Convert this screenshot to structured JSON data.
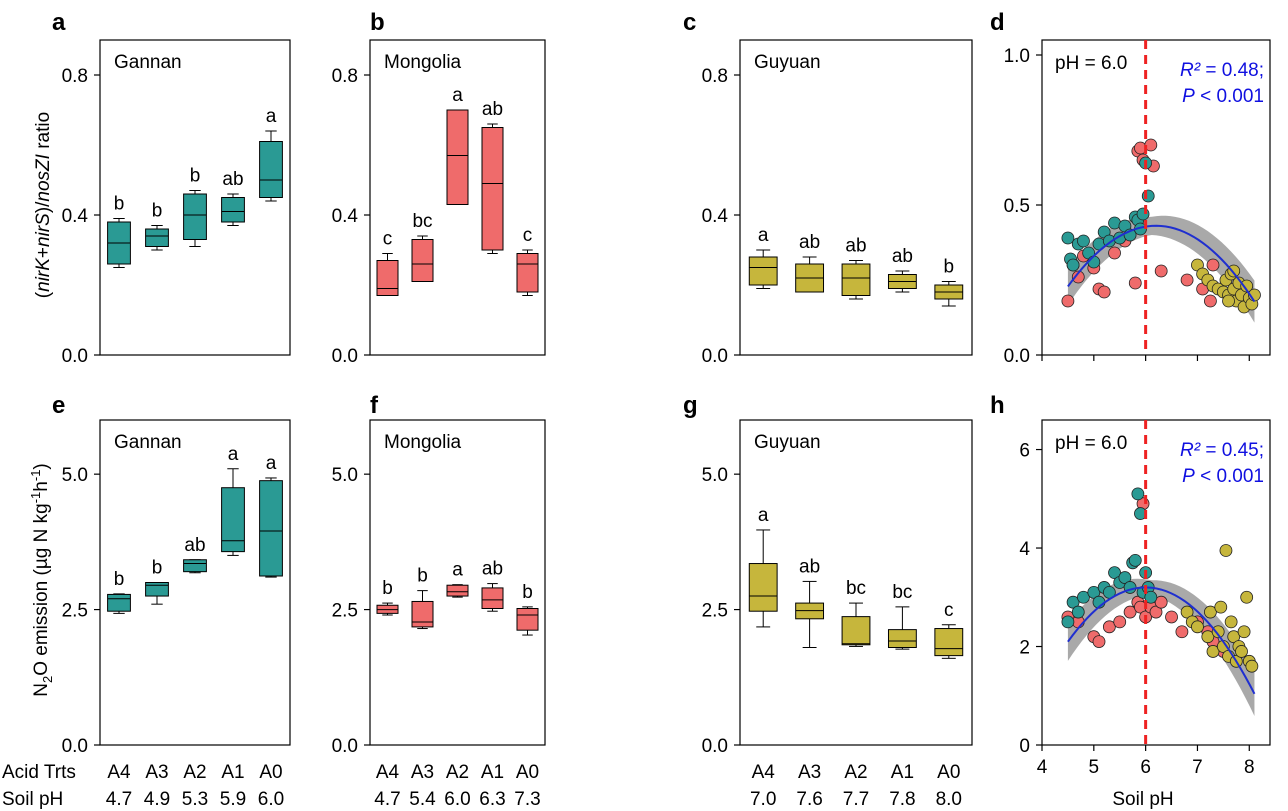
{
  "figure": {
    "ylabel_top": "(nirK+nirS)/nosZI ratio",
    "ylabel_bottom": "N2O emission (µg N kg-1h-1)",
    "row_labels": {
      "trts": "Acid Trts",
      "ph": "Soil pH"
    },
    "xlabel_scatter": "Soil pH",
    "colors": {
      "Gannan": "#2a9a94",
      "Mongolia": "#ef6b6b",
      "Guyuan": "#c6b63c",
      "fit": "#1f2fd0",
      "band": "#8c8c8c",
      "vline": "#ee2222",
      "stat": "#1010e0"
    }
  },
  "chart_data": [
    {
      "panel": "a",
      "type": "box",
      "site": "Gannan",
      "color": "Gannan",
      "ylim": [
        0,
        0.9
      ],
      "yticks": [
        "0.0",
        "0.4",
        "0.8"
      ],
      "categories": [
        "A4",
        "A3",
        "A2",
        "A1",
        "A0"
      ],
      "soil_ph": [
        "4.7",
        "4.9",
        "5.3",
        "5.9",
        "6.0"
      ],
      "boxes": [
        {
          "wmin": 0.25,
          "q1": 0.26,
          "med": 0.32,
          "q3": 0.38,
          "wmax": 0.39,
          "letter": "b"
        },
        {
          "wmin": 0.3,
          "q1": 0.31,
          "med": 0.34,
          "q3": 0.36,
          "wmax": 0.37,
          "letter": "b"
        },
        {
          "wmin": 0.31,
          "q1": 0.33,
          "med": 0.4,
          "q3": 0.46,
          "wmax": 0.47,
          "letter": "b"
        },
        {
          "wmin": 0.37,
          "q1": 0.38,
          "med": 0.41,
          "q3": 0.45,
          "wmax": 0.46,
          "letter": "ab"
        },
        {
          "wmin": 0.44,
          "q1": 0.45,
          "med": 0.5,
          "q3": 0.61,
          "wmax": 0.64,
          "letter": "a"
        }
      ]
    },
    {
      "panel": "b",
      "type": "box",
      "site": "Mongolia",
      "color": "Mongolia",
      "ylim": [
        0,
        0.9
      ],
      "yticks": [
        "0.0",
        "0.4",
        "0.8"
      ],
      "categories": [
        "A4",
        "A3",
        "A2",
        "A1",
        "A0"
      ],
      "soil_ph": [
        "4.7",
        "5.4",
        "6.0",
        "6.3",
        "7.3"
      ],
      "boxes": [
        {
          "wmin": 0.17,
          "q1": 0.17,
          "med": 0.19,
          "q3": 0.27,
          "wmax": 0.29,
          "letter": "c"
        },
        {
          "wmin": 0.21,
          "q1": 0.21,
          "med": 0.26,
          "q3": 0.33,
          "wmax": 0.34,
          "letter": "bc"
        },
        {
          "wmin": 0.43,
          "q1": 0.43,
          "med": 0.57,
          "q3": 0.7,
          "wmax": 0.7,
          "letter": "a"
        },
        {
          "wmin": 0.29,
          "q1": 0.3,
          "med": 0.49,
          "q3": 0.65,
          "wmax": 0.66,
          "letter": "ab"
        },
        {
          "wmin": 0.17,
          "q1": 0.18,
          "med": 0.26,
          "q3": 0.29,
          "wmax": 0.3,
          "letter": "c"
        }
      ]
    },
    {
      "panel": "c",
      "type": "box",
      "site": "Guyuan",
      "color": "Guyuan",
      "ylim": [
        0,
        0.9
      ],
      "yticks": [
        "0.0",
        "0.4",
        "0.8"
      ],
      "categories": [
        "A4",
        "A3",
        "A2",
        "A1",
        "A0"
      ],
      "soil_ph": [
        "7.0",
        "7.6",
        "7.7",
        "7.8",
        "8.0"
      ],
      "boxes": [
        {
          "wmin": 0.19,
          "q1": 0.2,
          "med": 0.25,
          "q3": 0.28,
          "wmax": 0.3,
          "letter": "a"
        },
        {
          "wmin": 0.18,
          "q1": 0.18,
          "med": 0.22,
          "q3": 0.26,
          "wmax": 0.28,
          "letter": "ab"
        },
        {
          "wmin": 0.16,
          "q1": 0.17,
          "med": 0.22,
          "q3": 0.26,
          "wmax": 0.27,
          "letter": "ab"
        },
        {
          "wmin": 0.18,
          "q1": 0.19,
          "med": 0.21,
          "q3": 0.23,
          "wmax": 0.24,
          "letter": "ab"
        },
        {
          "wmin": 0.14,
          "q1": 0.16,
          "med": 0.18,
          "q3": 0.2,
          "wmax": 0.21,
          "letter": "b"
        }
      ]
    },
    {
      "panel": "e",
      "type": "box",
      "site": "Gannan",
      "color": "Gannan",
      "ylim": [
        0,
        6.0
      ],
      "yticks": [
        "0.0",
        "2.5",
        "5.0"
      ],
      "categories": [
        "A4",
        "A3",
        "A2",
        "A1",
        "A0"
      ],
      "soil_ph": [
        "4.7",
        "4.9",
        "5.3",
        "5.9",
        "6.0"
      ],
      "boxes": [
        {
          "wmin": 2.43,
          "q1": 2.47,
          "med": 2.7,
          "q3": 2.78,
          "wmax": 2.79,
          "letter": "b"
        },
        {
          "wmin": 2.6,
          "q1": 2.75,
          "med": 2.95,
          "q3": 3.0,
          "wmax": 3.0,
          "letter": "b"
        },
        {
          "wmin": 3.18,
          "q1": 3.2,
          "med": 3.35,
          "q3": 3.42,
          "wmax": 3.42,
          "letter": "ab"
        },
        {
          "wmin": 3.5,
          "q1": 3.57,
          "med": 3.77,
          "q3": 4.75,
          "wmax": 5.1,
          "letter": "a"
        },
        {
          "wmin": 3.1,
          "q1": 3.12,
          "med": 3.95,
          "q3": 4.88,
          "wmax": 4.93,
          "letter": "a"
        }
      ]
    },
    {
      "panel": "f",
      "type": "box",
      "site": "Mongolia",
      "color": "Mongolia",
      "ylim": [
        0,
        6.0
      ],
      "yticks": [
        "0.0",
        "2.5",
        "5.0"
      ],
      "categories": [
        "A4",
        "A3",
        "A2",
        "A1",
        "A0"
      ],
      "soil_ph": [
        "4.7",
        "5.4",
        "6.0",
        "6.3",
        "7.3"
      ],
      "boxes": [
        {
          "wmin": 2.4,
          "q1": 2.43,
          "med": 2.5,
          "q3": 2.58,
          "wmax": 2.62,
          "letter": "b"
        },
        {
          "wmin": 2.15,
          "q1": 2.18,
          "med": 2.27,
          "q3": 2.65,
          "wmax": 2.85,
          "letter": "b"
        },
        {
          "wmin": 2.73,
          "q1": 2.75,
          "med": 2.83,
          "q3": 2.95,
          "wmax": 2.96,
          "letter": "a"
        },
        {
          "wmin": 2.47,
          "q1": 2.52,
          "med": 2.68,
          "q3": 2.9,
          "wmax": 2.98,
          "letter": "ab"
        },
        {
          "wmin": 2.03,
          "q1": 2.12,
          "med": 2.4,
          "q3": 2.52,
          "wmax": 2.55,
          "letter": "b"
        }
      ]
    },
    {
      "panel": "g",
      "type": "box",
      "site": "Guyuan",
      "color": "Guyuan",
      "ylim": [
        0,
        6.0
      ],
      "yticks": [
        "0.0",
        "2.5",
        "5.0"
      ],
      "categories": [
        "A4",
        "A3",
        "A2",
        "A1",
        "A0"
      ],
      "soil_ph": [
        "7.0",
        "7.6",
        "7.7",
        "7.8",
        "8.0"
      ],
      "boxes": [
        {
          "wmin": 2.18,
          "q1": 2.47,
          "med": 2.75,
          "q3": 3.35,
          "wmax": 3.97,
          "letter": "a"
        },
        {
          "wmin": 1.8,
          "q1": 2.33,
          "med": 2.48,
          "q3": 2.62,
          "wmax": 3.02,
          "letter": "ab"
        },
        {
          "wmin": 1.82,
          "q1": 1.85,
          "med": 1.87,
          "q3": 2.37,
          "wmax": 2.62,
          "letter": "bc"
        },
        {
          "wmin": 1.77,
          "q1": 1.8,
          "med": 1.92,
          "q3": 2.13,
          "wmax": 2.55,
          "letter": "bc"
        },
        {
          "wmin": 1.6,
          "q1": 1.65,
          "med": 1.78,
          "q3": 2.15,
          "wmax": 2.22,
          "letter": "c"
        }
      ]
    },
    {
      "panel": "d",
      "type": "scatter",
      "xlim": [
        4,
        8.4
      ],
      "ylim": [
        0,
        1.05
      ],
      "xticks": [
        4,
        5,
        6,
        7,
        8
      ],
      "yticks": [
        "0.0",
        "0.5",
        "1.0"
      ],
      "ytick_values": [
        0,
        0.5,
        1.0
      ],
      "vline": 6.0,
      "vline_label": "pH = 6.0",
      "r2_text": "R² = 0.48;",
      "p_text": "P < 0.001",
      "fit": {
        "a": -0.07,
        "b": 0.868,
        "c": -2.26
      },
      "band": [
        0.03,
        0.07
      ],
      "points": {
        "Gannan": [
          [
            4.5,
            0.39
          ],
          [
            4.55,
            0.32
          ],
          [
            4.6,
            0.3
          ],
          [
            4.7,
            0.37
          ],
          [
            4.8,
            0.38
          ],
          [
            4.9,
            0.34
          ],
          [
            5.0,
            0.31
          ],
          [
            5.1,
            0.37
          ],
          [
            5.2,
            0.41
          ],
          [
            5.3,
            0.38
          ],
          [
            5.4,
            0.44
          ],
          [
            5.5,
            0.39
          ],
          [
            5.6,
            0.43
          ],
          [
            5.7,
            0.4
          ],
          [
            5.8,
            0.46
          ],
          [
            5.85,
            0.45
          ],
          [
            5.9,
            0.42
          ],
          [
            5.95,
            0.47
          ],
          [
            6.0,
            0.64
          ],
          [
            6.05,
            0.53
          ]
        ],
        "Mongolia": [
          [
            4.5,
            0.18
          ],
          [
            4.6,
            0.3
          ],
          [
            4.7,
            0.26
          ],
          [
            4.8,
            0.33
          ],
          [
            5.0,
            0.29
          ],
          [
            5.1,
            0.22
          ],
          [
            5.2,
            0.21
          ],
          [
            5.4,
            0.34
          ],
          [
            5.6,
            0.38
          ],
          [
            5.8,
            0.24
          ],
          [
            5.85,
            0.68
          ],
          [
            5.9,
            0.69
          ],
          [
            5.95,
            0.65
          ],
          [
            6.1,
            0.7
          ],
          [
            6.15,
            0.63
          ],
          [
            6.3,
            0.28
          ],
          [
            6.8,
            0.25
          ],
          [
            7.1,
            0.22
          ],
          [
            7.3,
            0.3
          ],
          [
            7.25,
            0.18
          ]
        ],
        "Guyuan": [
          [
            7.0,
            0.3
          ],
          [
            7.1,
            0.27
          ],
          [
            7.2,
            0.25
          ],
          [
            7.3,
            0.23
          ],
          [
            7.4,
            0.22
          ],
          [
            7.5,
            0.21
          ],
          [
            7.55,
            0.25
          ],
          [
            7.6,
            0.2
          ],
          [
            7.65,
            0.27
          ],
          [
            7.7,
            0.22
          ],
          [
            7.75,
            0.18
          ],
          [
            7.8,
            0.24
          ],
          [
            7.85,
            0.2
          ],
          [
            7.9,
            0.16
          ],
          [
            7.95,
            0.23
          ],
          [
            8.0,
            0.19
          ],
          [
            8.05,
            0.17
          ],
          [
            8.1,
            0.2
          ],
          [
            7.7,
            0.28
          ],
          [
            7.6,
            0.18
          ]
        ]
      }
    },
    {
      "panel": "h",
      "type": "scatter",
      "xlim": [
        4,
        8.4
      ],
      "ylim": [
        0,
        6.6
      ],
      "xticks": [
        4,
        5,
        6,
        7,
        8
      ],
      "yticks": [
        "0",
        "2",
        "4",
        "6"
      ],
      "ytick_values": [
        0,
        2,
        4,
        6
      ],
      "xtick_labels": [
        "4",
        "5",
        "6",
        "7",
        "8"
      ],
      "vline": 6.0,
      "vline_label": "pH = 6.0",
      "r2_text": "R² = 0.45;",
      "p_text": "P < 0.001",
      "fit": {
        "a": -0.49,
        "b": 5.88,
        "c": -14.44
      },
      "band": [
        0.15,
        0.45
      ],
      "points": {
        "Gannan": [
          [
            4.5,
            2.5
          ],
          [
            4.6,
            2.9
          ],
          [
            4.7,
            2.7
          ],
          [
            4.8,
            3.0
          ],
          [
            5.0,
            3.1
          ],
          [
            5.1,
            2.9
          ],
          [
            5.2,
            3.2
          ],
          [
            5.3,
            3.1
          ],
          [
            5.4,
            3.5
          ],
          [
            5.5,
            3.3
          ],
          [
            5.6,
            3.4
          ],
          [
            5.75,
            3.7
          ],
          [
            5.8,
            3.75
          ],
          [
            5.85,
            5.1
          ],
          [
            5.9,
            4.7
          ],
          [
            5.95,
            3.1
          ],
          [
            6.0,
            3.5
          ],
          [
            6.05,
            3.2
          ],
          [
            6.1,
            3.0
          ],
          [
            5.7,
            3.2
          ]
        ],
        "Mongolia": [
          [
            4.5,
            2.6
          ],
          [
            4.7,
            2.5
          ],
          [
            5.0,
            2.2
          ],
          [
            5.1,
            2.1
          ],
          [
            5.3,
            2.4
          ],
          [
            5.5,
            2.5
          ],
          [
            5.7,
            2.7
          ],
          [
            5.85,
            2.9
          ],
          [
            5.9,
            2.8
          ],
          [
            5.95,
            4.9
          ],
          [
            6.0,
            2.6
          ],
          [
            6.1,
            2.8
          ],
          [
            6.2,
            2.7
          ],
          [
            6.3,
            2.9
          ],
          [
            6.5,
            2.6
          ],
          [
            6.7,
            2.3
          ],
          [
            7.0,
            2.5
          ],
          [
            7.2,
            2.3
          ],
          [
            7.3,
            2.1
          ],
          [
            7.5,
            1.9
          ]
        ],
        "Guyuan": [
          [
            6.8,
            2.7
          ],
          [
            6.9,
            2.5
          ],
          [
            7.0,
            2.4
          ],
          [
            7.2,
            2.2
          ],
          [
            7.25,
            2.7
          ],
          [
            7.3,
            1.9
          ],
          [
            7.4,
            2.3
          ],
          [
            7.45,
            2.8
          ],
          [
            7.5,
            2.0
          ],
          [
            7.55,
            3.95
          ],
          [
            7.6,
            1.8
          ],
          [
            7.65,
            2.5
          ],
          [
            7.7,
            2.2
          ],
          [
            7.75,
            1.7
          ],
          [
            7.8,
            2.0
          ],
          [
            7.85,
            1.9
          ],
          [
            7.9,
            2.3
          ],
          [
            7.95,
            3.0
          ],
          [
            8.0,
            1.7
          ],
          [
            8.05,
            1.6
          ]
        ]
      }
    }
  ]
}
